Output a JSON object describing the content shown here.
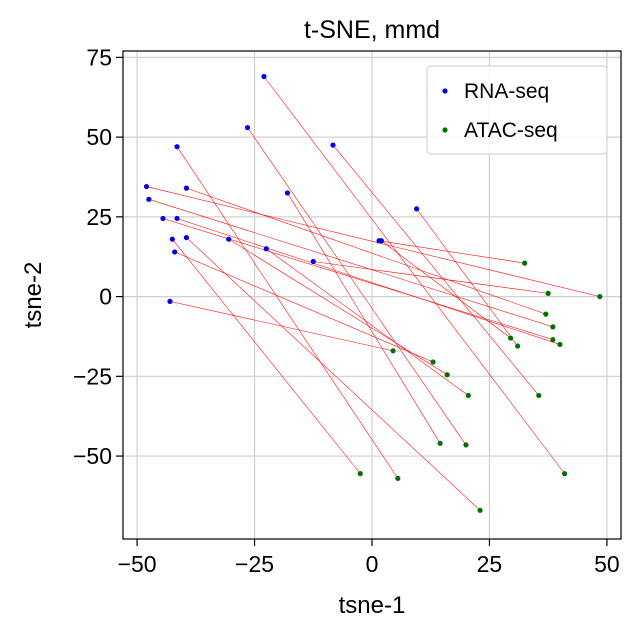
{
  "chart_data": {
    "type": "scatter",
    "title": "t-SNE, mmd",
    "xlabel": "tsne-1",
    "ylabel": "tsne-2",
    "xlim": [
      -53,
      53
    ],
    "ylim": [
      -76,
      77
    ],
    "xticks": [
      {
        "value": -50,
        "label": "−50"
      },
      {
        "value": -25,
        "label": "−25"
      },
      {
        "value": 0,
        "label": "0"
      },
      {
        "value": 25,
        "label": "25"
      },
      {
        "value": 50,
        "label": "50"
      }
    ],
    "yticks": [
      {
        "value": 75,
        "label": "75"
      },
      {
        "value": 50,
        "label": "50"
      },
      {
        "value": 25,
        "label": "25"
      },
      {
        "value": 0,
        "label": "0"
      },
      {
        "value": -25,
        "label": "−25"
      },
      {
        "value": -50,
        "label": "−50"
      }
    ],
    "grid": true,
    "legend_position": "top-right",
    "colors": {
      "rna": "#0000ee",
      "atac": "#007000",
      "link": "#ff0000",
      "grid": "#d0d0d0",
      "axes": "#000000"
    },
    "series": [
      {
        "name": "RNA-seq",
        "points": [
          [
            -23,
            69
          ],
          [
            -26.5,
            53
          ],
          [
            -41.5,
            47
          ],
          [
            -8.3,
            47.5
          ],
          [
            -48,
            34.5
          ],
          [
            -39.5,
            34
          ],
          [
            -18,
            32.5
          ],
          [
            -47.5,
            30.5
          ],
          [
            9.5,
            27.5
          ],
          [
            -44.5,
            24.5
          ],
          [
            -41.5,
            24.5
          ],
          [
            -39.5,
            18.5
          ],
          [
            -42.5,
            18
          ],
          [
            -30.5,
            18
          ],
          [
            1.5,
            17.5
          ],
          [
            2,
            17.5
          ],
          [
            -22.5,
            15
          ],
          [
            -42,
            14
          ],
          [
            -12.5,
            11
          ],
          [
            -43,
            -1.5
          ]
        ]
      },
      {
        "name": "ATAC-seq",
        "points": [
          [
            32.5,
            10.5
          ],
          [
            48.5,
            0
          ],
          [
            37.5,
            1
          ],
          [
            37,
            -5.5
          ],
          [
            38.5,
            -9.5
          ],
          [
            29.5,
            -13
          ],
          [
            31,
            -15.5
          ],
          [
            38.5,
            -13.5
          ],
          [
            40,
            -15
          ],
          [
            4.5,
            -17
          ],
          [
            13,
            -20.5
          ],
          [
            16,
            -24.5
          ],
          [
            20.5,
            -31
          ],
          [
            35.5,
            -31
          ],
          [
            14.5,
            -46
          ],
          [
            20,
            -46.5
          ],
          [
            -2.5,
            -55.5
          ],
          [
            5.5,
            -57
          ],
          [
            41,
            -55.5
          ],
          [
            23,
            -67
          ]
        ]
      }
    ],
    "links": [
      [
        -23,
        69,
        41,
        -55.5
      ],
      [
        -26.5,
        53,
        20,
        -46.5
      ],
      [
        -8.3,
        47.5,
        35.5,
        -31
      ],
      [
        -41.5,
        47,
        5.5,
        -57
      ],
      [
        -48,
        34.5,
        48.5,
        0
      ],
      [
        -39.5,
        34,
        37,
        -5.5
      ],
      [
        -47.5,
        30.5,
        38.5,
        -9.5
      ],
      [
        -44.5,
        24.5,
        38.5,
        -13.5
      ],
      [
        -41.5,
        24.5,
        40,
        -15
      ],
      [
        -18,
        32.5,
        14.5,
        -46
      ],
      [
        9.5,
        27.5,
        31,
        -15.5
      ],
      [
        1.5,
        17.5,
        32.5,
        10.5
      ],
      [
        2,
        17.5,
        29.5,
        -13
      ],
      [
        -42.5,
        18,
        -2.5,
        -55.5
      ],
      [
        -39.5,
        18.5,
        23,
        -67
      ],
      [
        -30.5,
        18,
        16,
        -24.5
      ],
      [
        -22.5,
        15,
        20.5,
        -31
      ],
      [
        -42,
        14,
        13,
        -20.5
      ],
      [
        -12.5,
        11,
        37.5,
        1
      ],
      [
        -43,
        -1.5,
        4.5,
        -17
      ]
    ]
  }
}
